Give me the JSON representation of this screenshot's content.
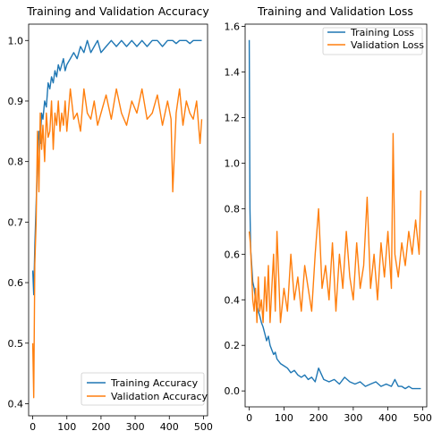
{
  "chart_data": [
    {
      "type": "line",
      "title": "Training and Validation Accuracy",
      "xlabel": "",
      "ylabel": "",
      "xlim": [
        -12,
        512
      ],
      "ylim": [
        0.38,
        1.027
      ],
      "xticks": [
        0,
        100,
        200,
        300,
        400,
        500
      ],
      "yticks": [
        0.4,
        0.5,
        0.6,
        0.7,
        0.8,
        0.9,
        1.0
      ],
      "ytick_labels": [
        "0.4",
        "0.5",
        "0.6",
        "0.7",
        "0.8",
        "0.9",
        "1.0"
      ],
      "legend_position": "lower-right",
      "series": [
        {
          "name": "Training Accuracy",
          "color": "#1f77b4",
          "x": [
            0,
            3,
            6,
            10,
            14,
            18,
            22,
            26,
            30,
            35,
            40,
            45,
            50,
            55,
            60,
            65,
            70,
            75,
            80,
            85,
            90,
            95,
            100,
            110,
            120,
            130,
            140,
            150,
            160,
            170,
            180,
            190,
            200,
            215,
            230,
            245,
            260,
            275,
            290,
            305,
            320,
            335,
            350,
            365,
            380,
            395,
            410,
            420,
            430,
            440,
            450,
            460,
            470,
            480,
            490,
            495
          ],
          "values": [
            0.62,
            0.58,
            0.66,
            0.73,
            0.8,
            0.85,
            0.83,
            0.88,
            0.87,
            0.9,
            0.89,
            0.93,
            0.92,
            0.94,
            0.93,
            0.95,
            0.94,
            0.96,
            0.95,
            0.96,
            0.97,
            0.95,
            0.96,
            0.97,
            0.98,
            0.97,
            0.99,
            0.98,
            1.0,
            0.98,
            0.99,
            1.0,
            0.98,
            0.99,
            1.0,
            0.99,
            1.0,
            0.99,
            1.0,
            0.99,
            1.0,
            0.99,
            1.0,
            1.0,
            0.99,
            1.0,
            1.0,
            0.995,
            1.0,
            1.0,
            1.0,
            0.995,
            1.0,
            1.0,
            1.0,
            1.0
          ]
        },
        {
          "name": "Validation Accuracy",
          "color": "#ff7f0e",
          "x": [
            0,
            3,
            6,
            10,
            14,
            18,
            22,
            26,
            30,
            35,
            40,
            45,
            50,
            55,
            60,
            65,
            70,
            75,
            80,
            85,
            90,
            95,
            100,
            110,
            120,
            130,
            140,
            150,
            160,
            170,
            180,
            190,
            200,
            215,
            230,
            245,
            260,
            275,
            290,
            305,
            320,
            335,
            350,
            365,
            380,
            395,
            405,
            410,
            420,
            430,
            440,
            450,
            460,
            470,
            480,
            490,
            495
          ],
          "values": [
            0.5,
            0.41,
            0.63,
            0.7,
            0.85,
            0.75,
            0.88,
            0.82,
            0.86,
            0.8,
            0.88,
            0.84,
            0.85,
            0.9,
            0.82,
            0.88,
            0.86,
            0.9,
            0.85,
            0.88,
            0.86,
            0.9,
            0.85,
            0.92,
            0.87,
            0.88,
            0.85,
            0.92,
            0.88,
            0.87,
            0.9,
            0.86,
            0.88,
            0.91,
            0.87,
            0.92,
            0.88,
            0.86,
            0.9,
            0.88,
            0.92,
            0.87,
            0.88,
            0.91,
            0.86,
            0.9,
            0.87,
            0.75,
            0.88,
            0.92,
            0.86,
            0.9,
            0.88,
            0.87,
            0.9,
            0.83,
            0.87
          ]
        }
      ]
    },
    {
      "type": "line",
      "title": "Training and Validation Loss",
      "xlabel": "",
      "ylabel": "",
      "xlim": [
        -12,
        512
      ],
      "ylim": [
        -0.07,
        1.61
      ],
      "xticks": [
        0,
        100,
        200,
        300,
        400,
        500
      ],
      "yticks": [
        0.0,
        0.2,
        0.4,
        0.6,
        0.8,
        1.0,
        1.2,
        1.4,
        1.6
      ],
      "ytick_labels": [
        "0.0",
        "0.2",
        "0.4",
        "0.6",
        "0.8",
        "1.0",
        "1.2",
        "1.4",
        "1.6"
      ],
      "legend_position": "upper-right",
      "series": [
        {
          "name": "Training Loss",
          "color": "#1f77b4",
          "x": [
            0,
            2,
            4,
            7,
            10,
            14,
            18,
            22,
            26,
            30,
            35,
            40,
            45,
            50,
            55,
            60,
            65,
            70,
            75,
            80,
            90,
            100,
            110,
            120,
            130,
            140,
            150,
            160,
            170,
            180,
            190,
            200,
            215,
            230,
            245,
            260,
            275,
            290,
            305,
            320,
            335,
            350,
            365,
            380,
            395,
            410,
            420,
            430,
            440,
            450,
            460,
            470,
            480,
            490,
            495
          ],
          "values": [
            1.54,
            0.8,
            0.62,
            0.55,
            0.48,
            0.45,
            0.4,
            0.38,
            0.35,
            0.33,
            0.3,
            0.28,
            0.25,
            0.22,
            0.24,
            0.2,
            0.18,
            0.16,
            0.17,
            0.14,
            0.12,
            0.11,
            0.1,
            0.08,
            0.09,
            0.07,
            0.06,
            0.07,
            0.05,
            0.06,
            0.04,
            0.1,
            0.05,
            0.04,
            0.05,
            0.03,
            0.06,
            0.04,
            0.03,
            0.04,
            0.02,
            0.03,
            0.04,
            0.02,
            0.03,
            0.02,
            0.05,
            0.02,
            0.02,
            0.01,
            0.02,
            0.01,
            0.01,
            0.01,
            0.01
          ]
        },
        {
          "name": "Validation Loss",
          "color": "#ff7f0e",
          "x": [
            0,
            3,
            6,
            10,
            14,
            18,
            22,
            26,
            30,
            35,
            40,
            45,
            50,
            55,
            60,
            65,
            70,
            75,
            80,
            90,
            100,
            110,
            120,
            130,
            140,
            150,
            160,
            170,
            180,
            190,
            200,
            210,
            220,
            230,
            240,
            250,
            260,
            270,
            280,
            290,
            300,
            310,
            320,
            330,
            340,
            350,
            360,
            370,
            380,
            390,
            400,
            410,
            415,
            420,
            430,
            440,
            450,
            460,
            470,
            480,
            490,
            495
          ],
          "values": [
            0.7,
            0.65,
            0.55,
            0.4,
            0.35,
            0.45,
            0.3,
            0.5,
            0.35,
            0.4,
            0.3,
            0.5,
            0.35,
            0.55,
            0.3,
            0.45,
            0.6,
            0.35,
            0.7,
            0.3,
            0.45,
            0.35,
            0.6,
            0.4,
            0.5,
            0.35,
            0.55,
            0.45,
            0.35,
            0.6,
            0.8,
            0.45,
            0.55,
            0.4,
            0.65,
            0.35,
            0.6,
            0.45,
            0.7,
            0.5,
            0.4,
            0.65,
            0.45,
            0.55,
            0.85,
            0.45,
            0.6,
            0.4,
            0.65,
            0.5,
            0.7,
            0.45,
            1.13,
            0.6,
            0.5,
            0.65,
            0.55,
            0.7,
            0.6,
            0.75,
            0.6,
            0.88
          ]
        }
      ]
    }
  ]
}
